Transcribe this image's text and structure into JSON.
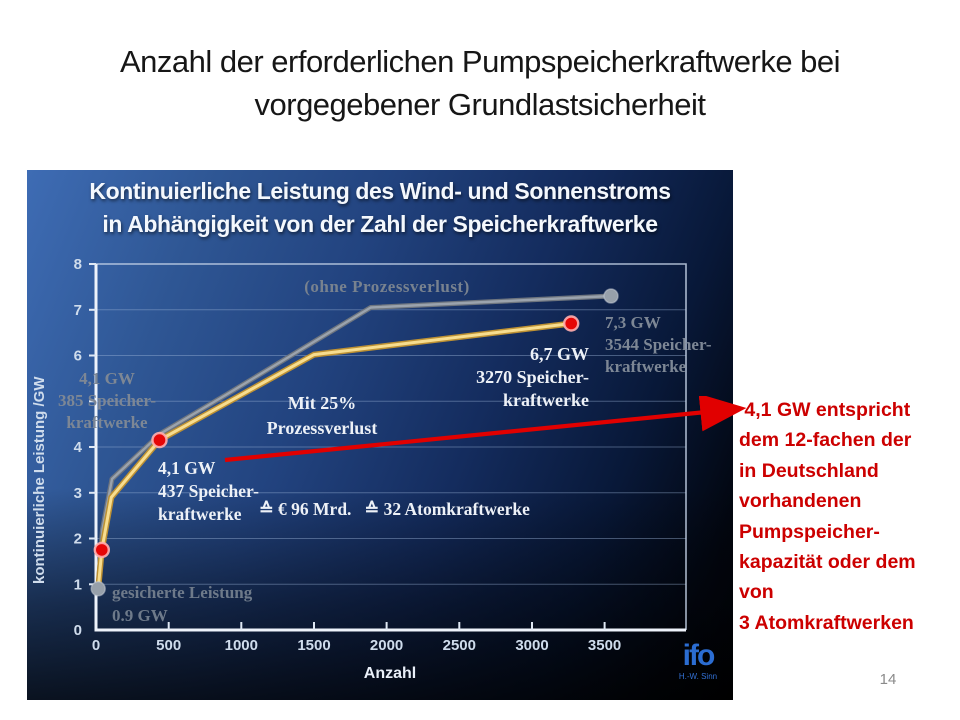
{
  "slide": {
    "title_line1": "Anzahl der erforderlichen Pumpspeicherkraftwerke bei",
    "title_line2": "vorgegebener Grundlastsicherheit",
    "page_number": "14"
  },
  "annotation": {
    "color": "#cc0000",
    "lines": [
      " 4,1 GW entspricht",
      "dem 12-fachen der",
      "in Deutschland",
      "vorhandenen",
      "Pumpspeicher-",
      "kapazität oder dem",
      "von",
      "3 Atomkraftwerken"
    ]
  },
  "logo": {
    "text": "ifo",
    "subtext": "H.-W. Sinn",
    "color": "#2b6dd2"
  },
  "chart_data": {
    "type": "line",
    "title_line1": "Kontinuierliche Leistung des Wind- und Sonnenstroms",
    "title_line2": "in Abhängigkeit von der Zahl der Speicherkraftwerke",
    "xlabel": "Anzahl",
    "ylabel": "kontinuierliche Leistung /GW",
    "xlim": [
      0,
      4060
    ],
    "ylim": [
      0,
      8
    ],
    "x_ticks": [
      0,
      500,
      1000,
      1500,
      2000,
      2500,
      3000,
      3500
    ],
    "y_tick_labels": [
      0,
      1,
      2,
      3,
      4,
      6,
      7,
      8
    ],
    "grid_lines_y": [
      1,
      2,
      3,
      4,
      5,
      6,
      7
    ],
    "grid": "horizontal, faint blue",
    "legend_position": "inline annotations",
    "series": [
      {
        "name": "ohne Prozessverlust",
        "color": "#9ba3ad",
        "edge": "#6e757f",
        "points": [
          [
            15,
            0.9
          ],
          [
            45,
            2.2
          ],
          [
            110,
            3.3
          ],
          [
            447,
            4.3
          ],
          [
            900,
            5.15
          ],
          [
            1890,
            7.05
          ],
          [
            3544,
            7.3
          ]
        ]
      },
      {
        "name": "Mit 25% Prozessverlust",
        "color": "#f7dd8f",
        "edge": "#bd9133",
        "points": [
          [
            15,
            0.9
          ],
          [
            40,
            1.75
          ],
          [
            105,
            2.9
          ],
          [
            437,
            4.15
          ],
          [
            1500,
            6.02
          ],
          [
            3270,
            6.7
          ]
        ]
      }
    ],
    "markers": [
      {
        "x": 15,
        "y": 0.9,
        "type": "gray"
      },
      {
        "x": 40,
        "y": 1.75,
        "type": "red"
      },
      {
        "x": 437,
        "y": 4.15,
        "type": "red"
      },
      {
        "x": 3270,
        "y": 6.7,
        "type": "red"
      },
      {
        "x": 3544,
        "y": 7.3,
        "type": "gray"
      }
    ],
    "labels": {
      "ohne_prozessverlust": "(ohne Prozessverlust)",
      "mit_prozessverlust": [
        "Mit 25%",
        "Prozessverlust"
      ],
      "gray_point_left": [
        "4,1 GW",
        "385 Speicher-",
        "kraftwerke"
      ],
      "white_point_left": [
        "4,1 GW",
        "437 Speicher-",
        "kraftwerke"
      ],
      "equivalence": "≙ € 96 Mrd.   ≙ 32 Atomkraftwerke",
      "white_point_right": [
        "6,7 GW",
        "3270 Speicher-",
        "kraftwerke"
      ],
      "gray_point_right": [
        "7,3 GW",
        "3544 Speicher-",
        "kraftwerke"
      ],
      "gesicherte_leistung": [
        "gesicherte Leistung",
        "0.9 GW"
      ]
    }
  }
}
